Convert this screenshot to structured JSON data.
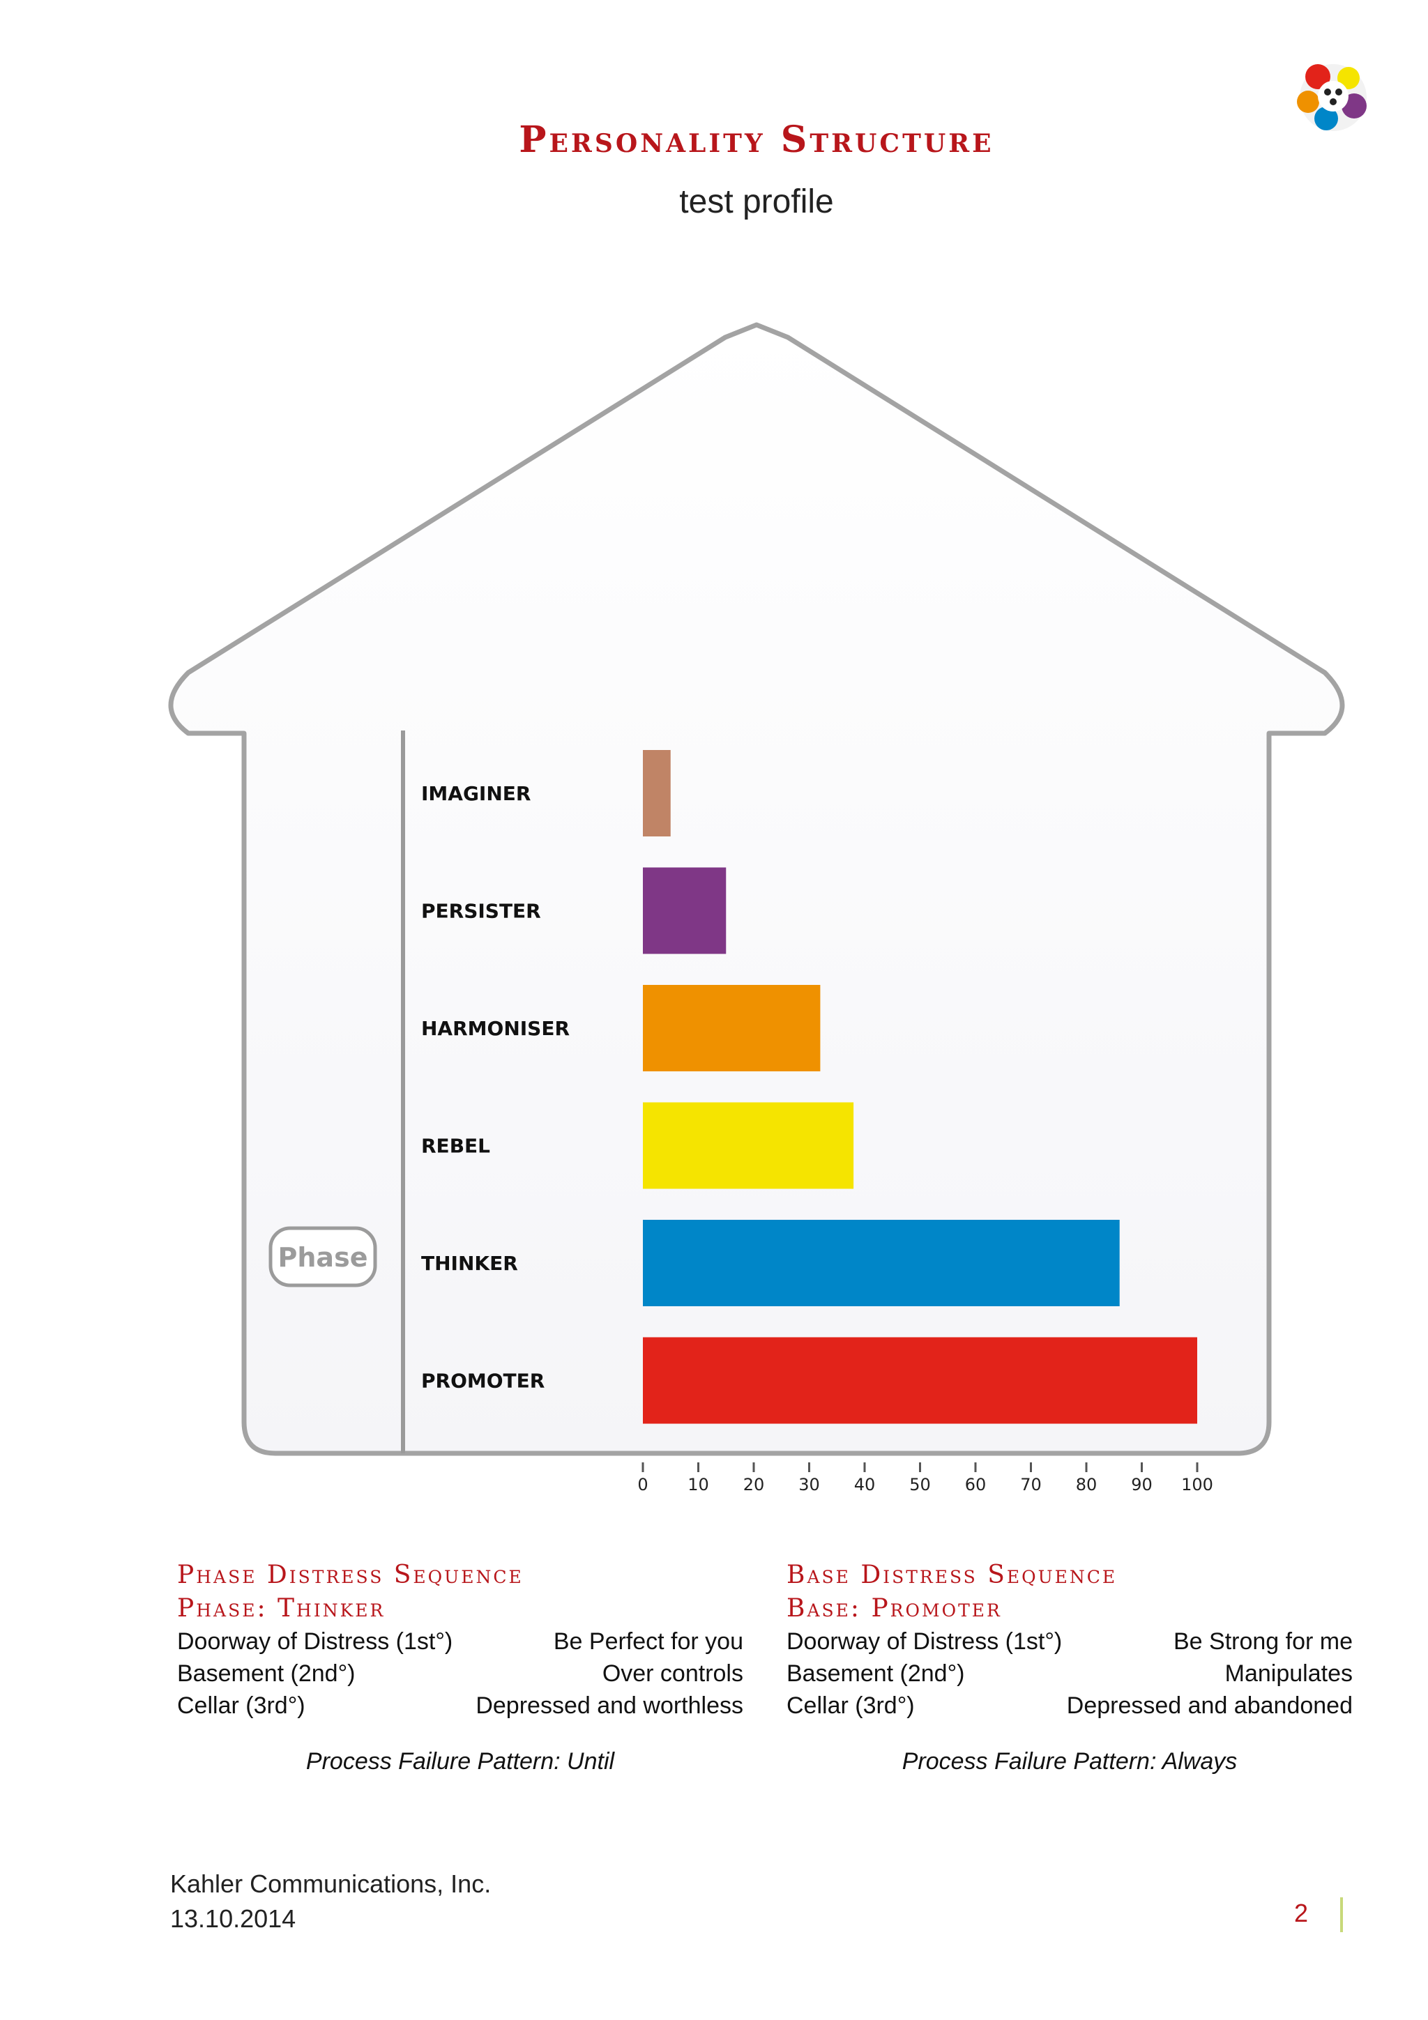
{
  "header": {
    "title": "Personality Structure",
    "subtitle": "test profile",
    "logo_icon": "colorful-figures-logo"
  },
  "chart_data": {
    "type": "bar",
    "orientation": "horizontal",
    "categories": [
      "IMAGINER",
      "PERSISTER",
      "HARMONISER",
      "REBEL",
      "THINKER",
      "PROMOTER"
    ],
    "values": [
      5,
      15,
      32,
      38,
      86,
      100
    ],
    "colors": [
      "#c08466",
      "#7f3786",
      "#ef9100",
      "#f5e400",
      "#0086c8",
      "#e2231a"
    ],
    "xlim": [
      0,
      100
    ],
    "xticks": [
      "0",
      "10",
      "20",
      "30",
      "40",
      "50",
      "60",
      "70",
      "80",
      "90",
      "100"
    ],
    "grid": false,
    "phase_label": "Phase",
    "phase_category": "THINKER"
  },
  "phase_sequence": {
    "title": "Phase Distress Sequence",
    "subtitle": "Phase: Thinker",
    "rows": [
      {
        "label": "Doorway of Distress (1st°)",
        "value": "Be Perfect for you"
      },
      {
        "label": "Basement (2nd°)",
        "value": "Over controls"
      },
      {
        "label": "Cellar (3rd°)",
        "value": "Depressed and worthless"
      }
    ],
    "process_failure": "Process Failure Pattern: Until"
  },
  "base_sequence": {
    "title": "Base Distress Sequence",
    "subtitle": "Base: Promoter",
    "rows": [
      {
        "label": "Doorway of Distress (1st°)",
        "value": "Be Strong for me"
      },
      {
        "label": "Basement (2nd°)",
        "value": "Manipulates"
      },
      {
        "label": "Cellar (3rd°)",
        "value": "Depressed and abandoned"
      }
    ],
    "process_failure": "Process Failure Pattern: Always"
  },
  "footer": {
    "company": "Kahler Communications, Inc.",
    "date": "13.10.2014",
    "page_number": "2"
  }
}
